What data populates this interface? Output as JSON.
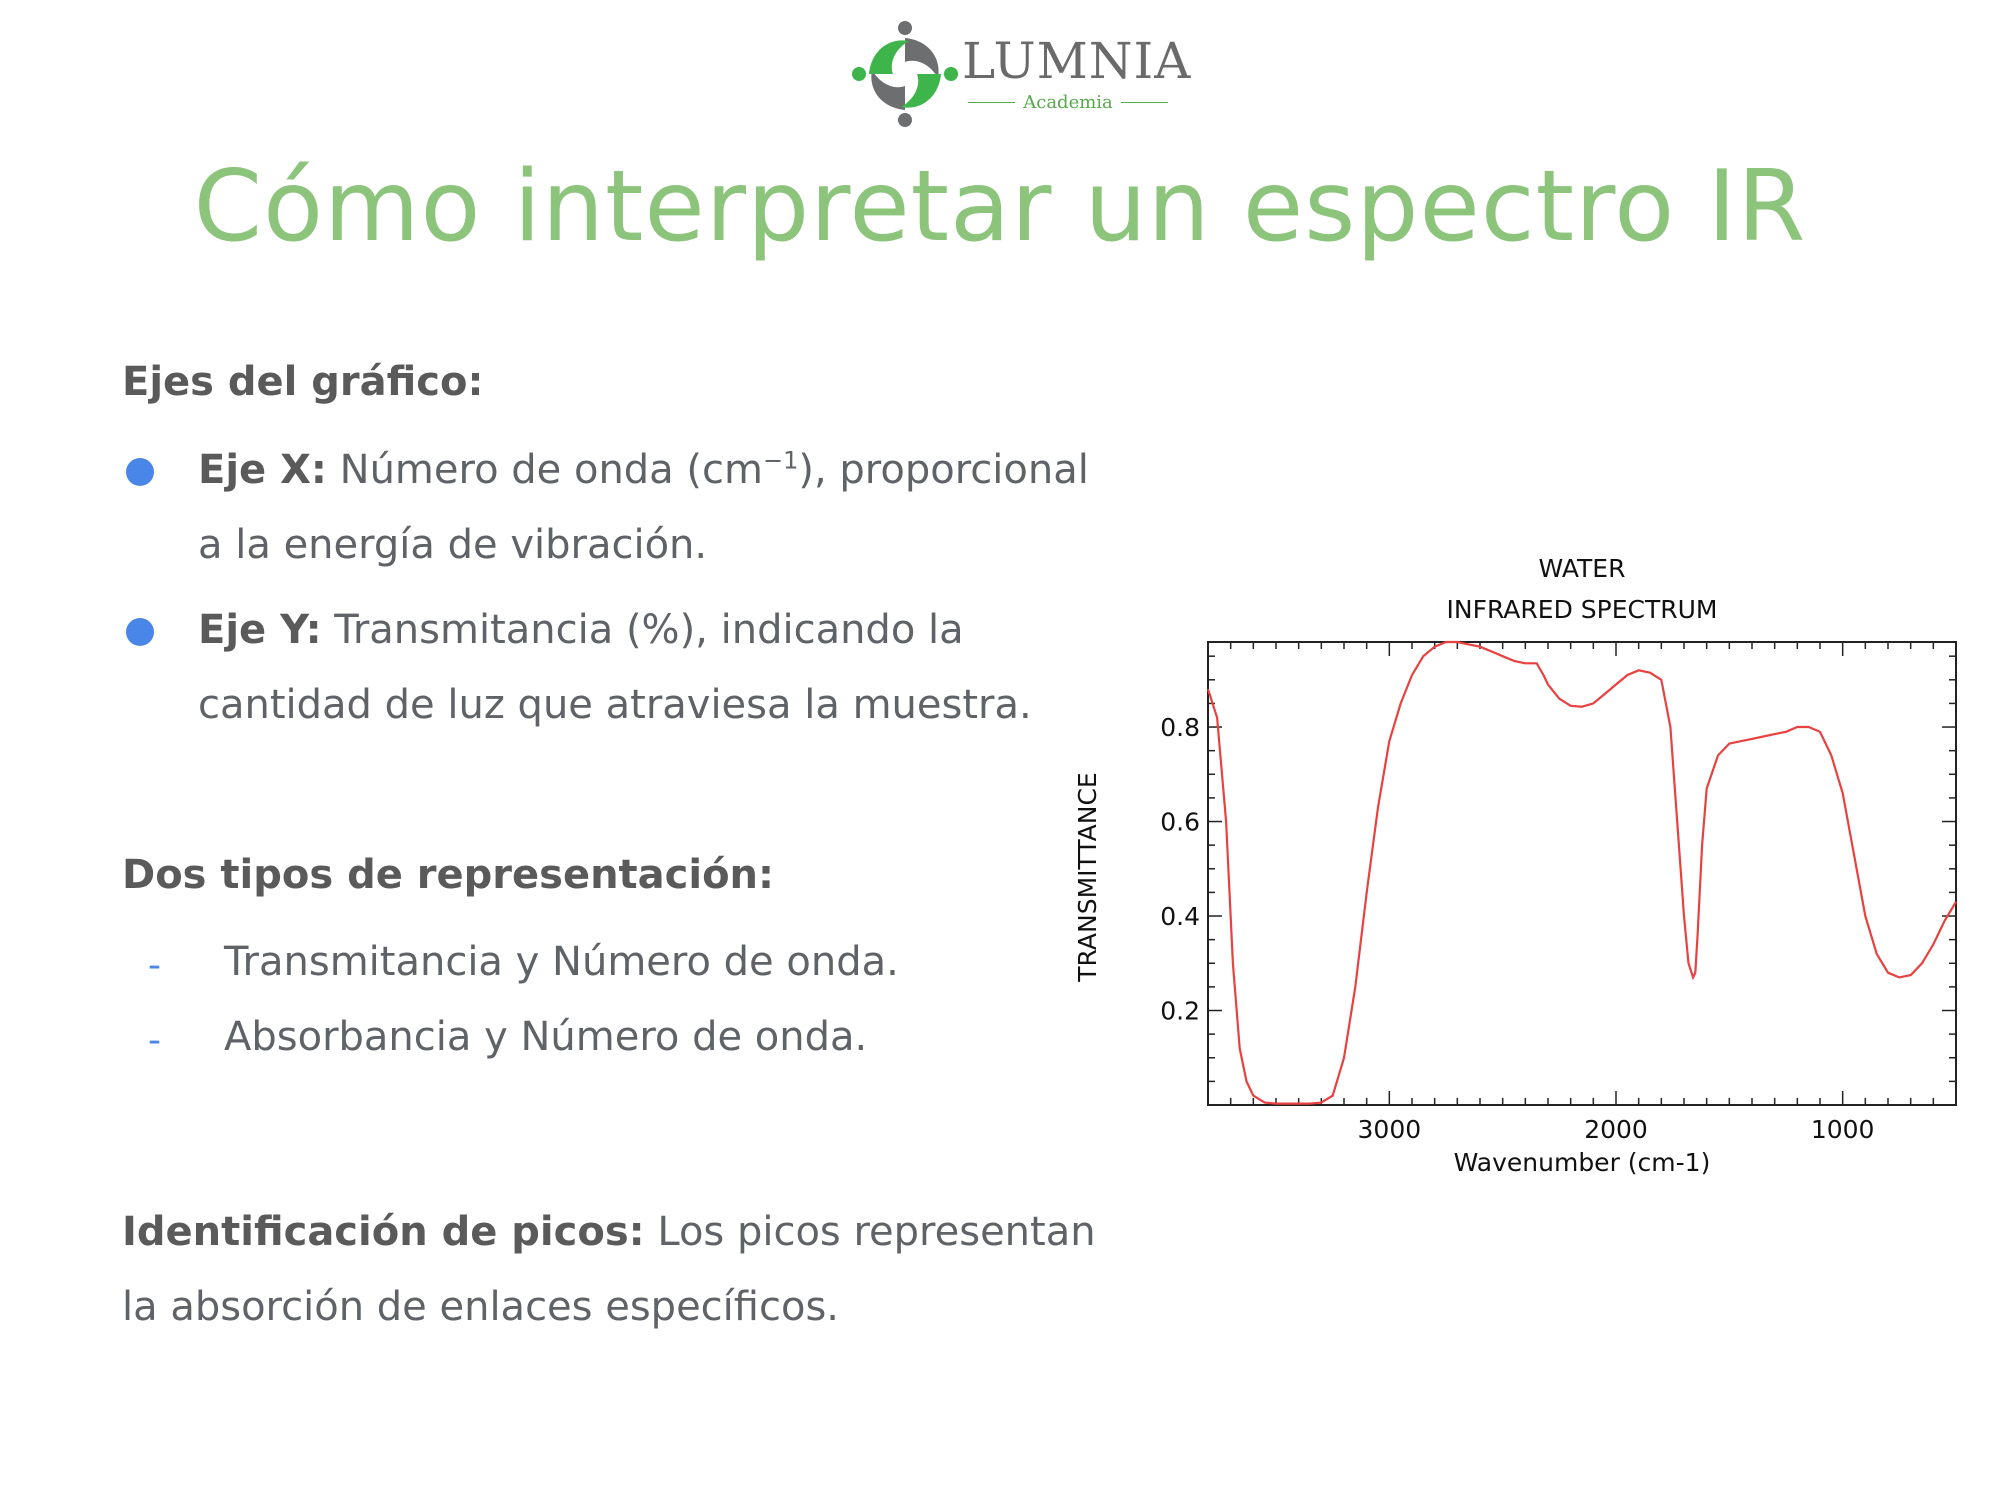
{
  "logo": {
    "name": "LUMNIA",
    "subtitle": "Academia"
  },
  "title": "Cómo interpretar un espectro IR",
  "axes_section": {
    "heading": "Ejes del gráfico:",
    "x_label": "Eje X:",
    "x_text_a": " Número de onda (cm",
    "x_sup": "−1",
    "x_text_b": "), proporcional",
    "x_text_c": "a la energía de vibración.",
    "y_label": "Eje Y:",
    "y_text_a": " Transmitancia (%), indicando la",
    "y_text_b": "cantidad de luz que atraviesa la muestra."
  },
  "representation": {
    "heading": "Dos tipos de representación:",
    "items": [
      "Transmitancia y Número de onda.",
      "Absorbancia y  Número de onda."
    ],
    "dash": "-"
  },
  "peaks": {
    "label": "Identificación de picos:",
    "text_a": " Los picos representan",
    "text_b": "la absorción de enlaces específicos."
  },
  "colors": {
    "title": "#8cc47c",
    "bullet": "#4a86e8",
    "curve": "#e8413f",
    "logo_green": "#3db54a",
    "logo_gray": "#6d6e70"
  },
  "chart_data": {
    "type": "line",
    "title": "WATER",
    "subtitle": "INFRARED SPECTRUM",
    "xlabel": "Wavenumber (cm-1)",
    "ylabel": "TRANSMITTANCE",
    "xlim": [
      3800,
      500
    ],
    "ylim": [
      0,
      0.98
    ],
    "x_ticks": [
      3000,
      2000,
      1000
    ],
    "x_tick_labels": [
      "3000",
      "2000",
      "1000"
    ],
    "y_ticks": [
      0.2,
      0.4,
      0.6,
      0.8
    ],
    "y_tick_labels": [
      "0.2",
      "0.4",
      "0.6",
      "0.8"
    ],
    "grid": false,
    "series": [
      {
        "x": [
          3800,
          3760,
          3720,
          3690,
          3660,
          3630,
          3600,
          3550,
          3500,
          3450,
          3400,
          3350,
          3300,
          3250,
          3200,
          3150,
          3100,
          3050,
          3000,
          2950,
          2900,
          2850,
          2800,
          2750,
          2700,
          2650,
          2600,
          2550,
          2500,
          2450,
          2400,
          2350,
          2320,
          2300,
          2250,
          2200,
          2150,
          2100,
          2050,
          2000,
          1950,
          1900,
          1850,
          1800,
          1760,
          1730,
          1700,
          1680,
          1660,
          1650,
          1640,
          1620,
          1600,
          1550,
          1500,
          1450,
          1400,
          1350,
          1300,
          1250,
          1200,
          1150,
          1100,
          1050,
          1000,
          950,
          900,
          850,
          800,
          750,
          700,
          650,
          600,
          550,
          500
        ],
        "y": [
          0.88,
          0.82,
          0.6,
          0.3,
          0.12,
          0.05,
          0.02,
          0.005,
          0.003,
          0.003,
          0.003,
          0.003,
          0.005,
          0.02,
          0.1,
          0.25,
          0.45,
          0.63,
          0.77,
          0.85,
          0.91,
          0.95,
          0.97,
          0.98,
          0.98,
          0.975,
          0.97,
          0.96,
          0.95,
          0.94,
          0.935,
          0.935,
          0.91,
          0.89,
          0.86,
          0.845,
          0.843,
          0.85,
          0.87,
          0.89,
          0.91,
          0.92,
          0.915,
          0.9,
          0.8,
          0.6,
          0.4,
          0.3,
          0.27,
          0.28,
          0.36,
          0.55,
          0.67,
          0.74,
          0.765,
          0.77,
          0.775,
          0.78,
          0.785,
          0.79,
          0.8,
          0.8,
          0.79,
          0.74,
          0.66,
          0.53,
          0.4,
          0.32,
          0.28,
          0.27,
          0.275,
          0.3,
          0.34,
          0.39,
          0.43
        ]
      }
    ]
  }
}
